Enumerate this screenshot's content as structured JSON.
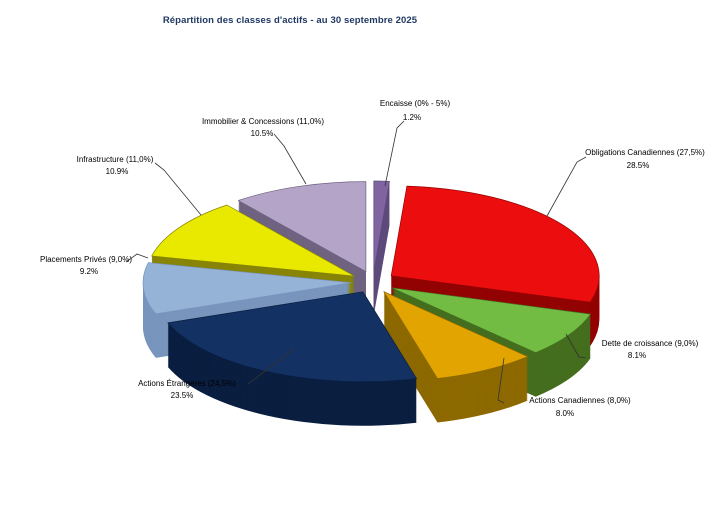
{
  "chart_data": {
    "type": "pie",
    "style": "3d-exploded",
    "title": "Répartition des classes d'actifs - au 30 septembre 2025",
    "title_color": "#1F3864",
    "background": "#FFFFFF",
    "legend_position": "none",
    "labels": "each slice labeled with name, target allocation in parentheses, and actual percentage",
    "slices": [
      {
        "key": "encaisse",
        "name": "Encaisse",
        "target": "0% - 5%",
        "label": "Encaisse (0% - 5%)",
        "value": 1.2,
        "value_label": "1.2%",
        "color": "#8064A2",
        "side_color": "#5E4B7C"
      },
      {
        "key": "obligations-canadiennes",
        "name": "Obligations Canadiennes",
        "target": "27,5%",
        "label": "Obligations Canadiennes (27,5%)",
        "value": 28.5,
        "value_label": "28.5%",
        "color": "#EC0E0E",
        "side_color": "#930202"
      },
      {
        "key": "dette-de-croissance",
        "name": "Dette de croissance",
        "target": "9,0%",
        "label": "Dette de croissance (9,0%)",
        "value": 8.1,
        "value_label": "8.1%",
        "color": "#72BC44",
        "side_color": "#446E1E"
      },
      {
        "key": "actions-canadiennes",
        "name": "Actions Canadiennes",
        "target": "8,0%",
        "label": "Actions Canadiennes (8,0%)",
        "value": 8.0,
        "value_label": "8.0%",
        "color": "#E2A400",
        "side_color": "#8D6900"
      },
      {
        "key": "actions-etrangeres",
        "name": "Actions Étrangères",
        "target": "24,5%",
        "label": "Actions Étrangères (24,5%)",
        "value": 23.5,
        "value_label": "23.5%",
        "color": "#133162",
        "side_color": "#0A1E40"
      },
      {
        "key": "placements-prives",
        "name": "Placements Privés",
        "target": "9,0%",
        "label": "Placements Privés (9,0%)",
        "value": 9.2,
        "value_label": "9.2%",
        "color": "#95B3D7",
        "side_color": "#7895BD"
      },
      {
        "key": "infrastructure",
        "name": "Infrastructure",
        "target": "11,0%",
        "label": "Infrastructure (11,0%)",
        "value": 10.9,
        "value_label": "10.9%",
        "color": "#E9E900",
        "side_color": "#878406"
      },
      {
        "key": "immobilier-concessions",
        "name": "Immobilier & Concessions",
        "target": "11,0%",
        "label": "Immobilier & Concessions (11,0%)",
        "value": 10.5,
        "value_label": "10.5%",
        "color": "#B4A5C8",
        "side_color": "#6F6380"
      }
    ],
    "leader_line_color": "#333333",
    "label_font_color": "#000000"
  }
}
